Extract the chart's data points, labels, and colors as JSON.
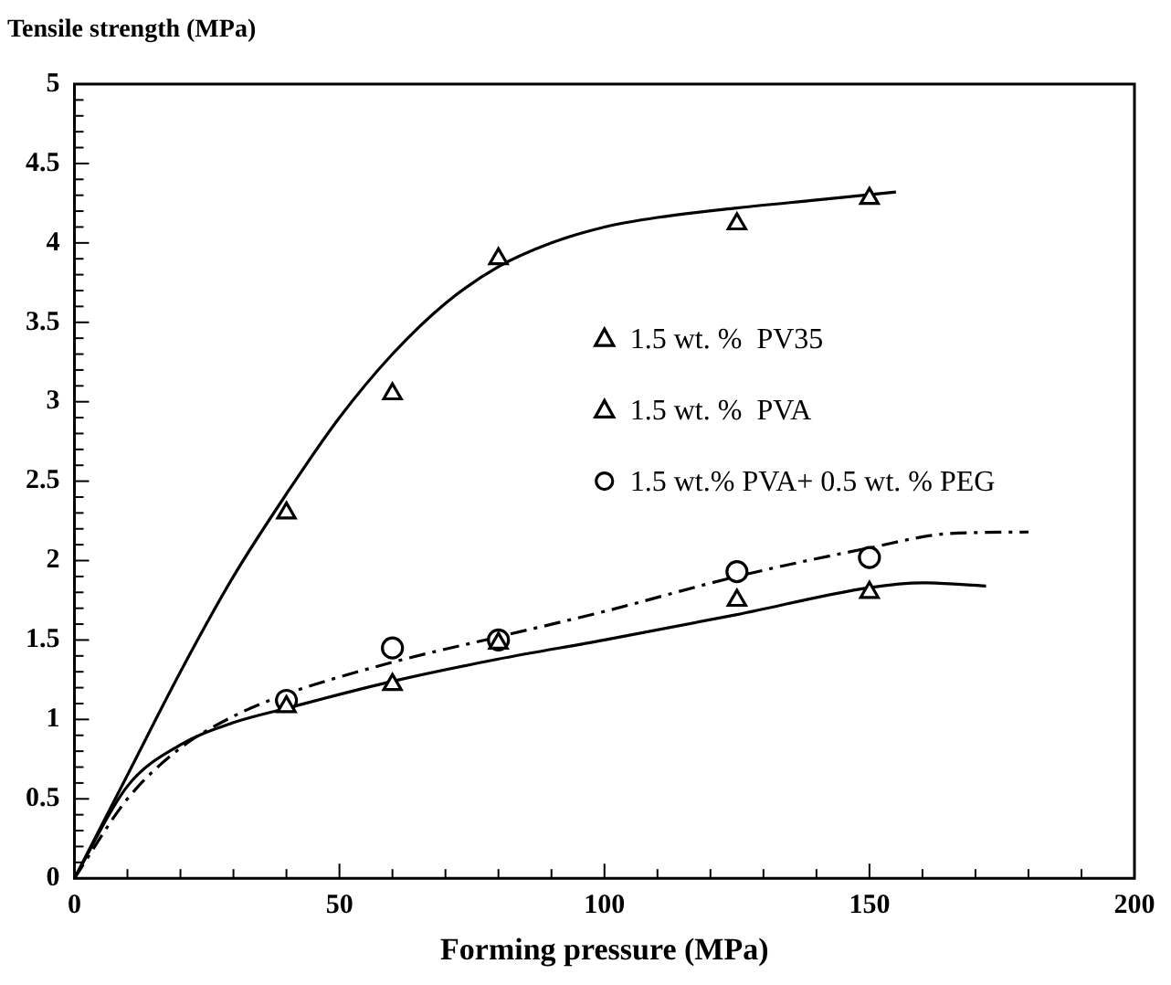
{
  "chart_data": {
    "type": "scatter",
    "ylabel": "Tensile strength (MPa)",
    "xlabel": "Forming pressure (MPa)",
    "xlim": [
      0,
      200
    ],
    "ylim": [
      0,
      5
    ],
    "xticks": [
      0,
      {
        "value": 10,
        "label": null
      },
      {
        "value": 20,
        "label": null
      },
      {
        "value": 30,
        "label": null
      },
      {
        "value": 40,
        "label": null
      },
      50,
      {
        "value": 60,
        "label": null
      },
      {
        "value": 70,
        "label": null
      },
      {
        "value": 80,
        "label": null
      },
      {
        "value": 90,
        "label": null
      },
      100,
      {
        "value": 110,
        "label": null
      },
      {
        "value": 120,
        "label": null
      },
      {
        "value": 130,
        "label": null
      },
      {
        "value": 140,
        "label": null
      },
      150,
      {
        "value": 160,
        "label": null
      },
      {
        "value": 170,
        "label": null
      },
      {
        "value": 180,
        "label": null
      },
      {
        "value": 190,
        "label": null
      },
      200
    ],
    "yticks": [
      0,
      {
        "value": 0.1,
        "label": null
      },
      {
        "value": 0.2,
        "label": null
      },
      {
        "value": 0.3,
        "label": null
      },
      {
        "value": 0.4,
        "label": null
      },
      0.5,
      {
        "value": 0.6,
        "label": null
      },
      {
        "value": 0.7,
        "label": null
      },
      {
        "value": 0.8,
        "label": null
      },
      {
        "value": 0.9,
        "label": null
      },
      1,
      {
        "value": 1.1,
        "label": null
      },
      {
        "value": 1.2,
        "label": null
      },
      {
        "value": 1.3,
        "label": null
      },
      {
        "value": 1.4,
        "label": null
      },
      1.5,
      {
        "value": 1.6,
        "label": null
      },
      {
        "value": 1.7,
        "label": null
      },
      {
        "value": 1.8,
        "label": null
      },
      {
        "value": 1.9,
        "label": null
      },
      2,
      {
        "value": 2.1,
        "label": null
      },
      {
        "value": 2.2,
        "label": null
      },
      {
        "value": 2.3,
        "label": null
      },
      {
        "value": 2.4,
        "label": null
      },
      2.5,
      {
        "value": 2.6,
        "label": null
      },
      {
        "value": 2.7,
        "label": null
      },
      {
        "value": 2.8,
        "label": null
      },
      {
        "value": 2.9,
        "label": null
      },
      3,
      {
        "value": 3.1,
        "label": null
      },
      {
        "value": 3.2,
        "label": null
      },
      {
        "value": 3.3,
        "label": null
      },
      {
        "value": 3.4,
        "label": null
      },
      3.5,
      {
        "value": 3.6,
        "label": null
      },
      {
        "value": 3.7,
        "label": null
      },
      {
        "value": 3.8,
        "label": null
      },
      {
        "value": 3.9,
        "label": null
      },
      4,
      {
        "value": 4.1,
        "label": null
      },
      {
        "value": 4.2,
        "label": null
      },
      {
        "value": 4.3,
        "label": null
      },
      {
        "value": 4.4,
        "label": null
      },
      4.5,
      {
        "value": 4.6,
        "label": null
      },
      {
        "value": 4.7,
        "label": null
      },
      {
        "value": 4.8,
        "label": null
      },
      {
        "value": 4.9,
        "label": null
      },
      5
    ],
    "grid": false,
    "legend": "right",
    "series": [
      {
        "name": "1.5 wt. %  PV35",
        "type": "scatter",
        "marker": "triangle",
        "color": "#000000",
        "x": [
          40,
          60,
          80,
          125,
          150
        ],
        "values": [
          2.3,
          3.05,
          3.9,
          4.12,
          4.28
        ]
      },
      {
        "name": "1.5 wt. %  PVA",
        "type": "scatter",
        "marker": "triangle",
        "color": "#000000",
        "x": [
          40,
          60,
          80,
          125,
          150
        ],
        "values": [
          1.08,
          1.22,
          1.48,
          1.75,
          1.8
        ]
      },
      {
        "name": "1.5 wt.% PVA+ 0.5 wt. % PEG",
        "type": "scatter",
        "marker": "circle",
        "color": "#000000",
        "x": [
          40,
          60,
          80,
          125,
          150
        ],
        "values": [
          1.12,
          1.45,
          1.5,
          1.93,
          2.02
        ]
      },
      {
        "type": "line",
        "marker": "none",
        "line_style": "solid",
        "color": "#000000",
        "x": [
          0,
          10,
          20,
          30,
          40,
          50,
          60,
          70,
          80,
          90,
          100,
          110,
          125,
          140,
          155
        ],
        "values": [
          0,
          0.65,
          1.3,
          1.9,
          2.42,
          2.9,
          3.3,
          3.62,
          3.85,
          4.0,
          4.1,
          4.16,
          4.22,
          4.27,
          4.32
        ]
      },
      {
        "type": "line",
        "marker": "none",
        "line_style": "solid",
        "color": "#000000",
        "x": [
          0,
          10,
          20,
          30,
          40,
          60,
          80,
          100,
          125,
          150,
          160,
          172
        ],
        "values": [
          0,
          0.58,
          0.84,
          0.98,
          1.07,
          1.24,
          1.38,
          1.5,
          1.66,
          1.83,
          1.86,
          1.84
        ]
      },
      {
        "type": "line",
        "marker": "none",
        "line_style": "dashed",
        "color": "#000000",
        "x": [
          0,
          10,
          20,
          30,
          40,
          60,
          80,
          100,
          125,
          150,
          165,
          180
        ],
        "values": [
          0,
          0.5,
          0.82,
          1.02,
          1.16,
          1.36,
          1.52,
          1.68,
          1.9,
          2.08,
          2.17,
          2.18
        ]
      }
    ]
  }
}
